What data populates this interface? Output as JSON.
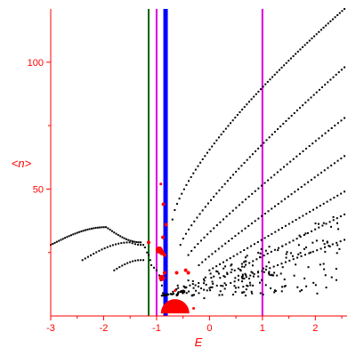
{
  "chart_data": {
    "type": "scatter",
    "title": "",
    "xlabel": "E",
    "ylabel": "<n>",
    "xlim": [
      -3,
      2.6
    ],
    "ylim": [
      0,
      121
    ],
    "x_ticks": [
      -3,
      -2,
      -1,
      0,
      1,
      2
    ],
    "x_tick_labels": [
      "-3",
      "-2",
      "-1",
      "0",
      "1",
      "2"
    ],
    "y_ticks": [
      50,
      100
    ],
    "y_tick_labels": [
      "50",
      "100"
    ],
    "grid": false,
    "legend": "none",
    "colors": {
      "axes": "#ff0000",
      "points": "#000000",
      "highlight": "#ff0000",
      "line_green": "#006400",
      "line_blue": "#0000ff",
      "line_magenta": "#dd00dd"
    },
    "vertical_lines": [
      {
        "x": -1.15,
        "color": "#006400",
        "style": "thin"
      },
      {
        "x": -1.0,
        "color": "#dd00dd",
        "style": "thin"
      },
      {
        "x": -0.83,
        "color": "#0000ff",
        "style": "thick"
      },
      {
        "x": 1.0,
        "color": "#dd00dd",
        "style": "thin"
      }
    ],
    "curves": [
      {
        "type": "arc",
        "x0": -3.0,
        "x1": -1.3,
        "y0": 28,
        "ypeak": 35,
        "xpeak": -1.95,
        "y1": 29,
        "n": 45
      },
      {
        "type": "arc",
        "x0": -2.4,
        "x1": -1.3,
        "y0": 22,
        "ypeak": 29,
        "xpeak": -1.5,
        "y1": 28,
        "n": 22
      },
      {
        "type": "arc",
        "x0": -1.8,
        "x1": -1.25,
        "y0": 18,
        "ypeak": 22,
        "xpeak": -1.3,
        "y1": 22,
        "n": 12
      },
      {
        "type": "power",
        "x0": -0.7,
        "x1": 2.55,
        "y0": 38,
        "y1": 121,
        "p": 0.72,
        "n": 75
      },
      {
        "type": "power",
        "x0": -0.55,
        "x1": 2.55,
        "y0": 28,
        "y1": 98,
        "p": 0.82,
        "n": 60
      },
      {
        "type": "power",
        "x0": -0.4,
        "x1": 2.55,
        "y0": 24,
        "y1": 78,
        "p": 0.9,
        "n": 50
      },
      {
        "type": "power",
        "x0": -0.2,
        "x1": 2.55,
        "y0": 20,
        "y1": 63,
        "p": 0.95,
        "n": 45
      },
      {
        "type": "power",
        "x0": 0.0,
        "x1": 2.55,
        "y0": 18,
        "y1": 49,
        "p": 1.0,
        "n": 40
      },
      {
        "type": "power",
        "x0": 0.2,
        "x1": 2.55,
        "y0": 15,
        "y1": 40,
        "p": 1.0,
        "n": 35
      },
      {
        "type": "power",
        "x0": 0.4,
        "x1": 2.55,
        "y0": 13,
        "y1": 30,
        "p": 1.0,
        "n": 30
      }
    ],
    "cloud": {
      "x0": -0.9,
      "x1": 2.55,
      "y0": 8,
      "y1": 42,
      "n": 220,
      "seed": 7
    },
    "points": [
      {
        "x": -1.25,
        "y": 28
      },
      {
        "x": -1.22,
        "y": 27
      },
      {
        "x": -1.18,
        "y": 25
      },
      {
        "x": -1.15,
        "y": 24
      },
      {
        "x": -1.12,
        "y": 22
      },
      {
        "x": -1.1,
        "y": 20
      },
      {
        "x": -1.05,
        "y": 19
      },
      {
        "x": -1.0,
        "y": 18
      },
      {
        "x": -0.95,
        "y": 16
      },
      {
        "x": -0.92,
        "y": 14
      },
      {
        "x": -0.9,
        "y": 12
      },
      {
        "x": -0.88,
        "y": 9
      },
      {
        "x": -0.85,
        "y": 8
      },
      {
        "x": -0.6,
        "y": 12
      },
      {
        "x": -0.5,
        "y": 10
      },
      {
        "x": -0.4,
        "y": 14
      },
      {
        "x": -0.3,
        "y": 11
      },
      {
        "x": -0.2,
        "y": 9
      },
      {
        "x": -0.1,
        "y": 7
      },
      {
        "x": 0.0,
        "y": 11
      }
    ],
    "highlight_points": [
      {
        "x": -0.95,
        "y": 26,
        "size": 4
      },
      {
        "x": -0.9,
        "y": 25,
        "size": 3
      },
      {
        "x": -0.85,
        "y": 24,
        "size": 2
      },
      {
        "x": -1.15,
        "y": 29,
        "size": 2
      },
      {
        "x": -0.9,
        "y": 15,
        "size": 3.5
      },
      {
        "x": -0.85,
        "y": 17,
        "size": 2
      },
      {
        "x": -0.87,
        "y": 44,
        "size": 2
      },
      {
        "x": -0.92,
        "y": 52,
        "size": 1.5
      },
      {
        "x": -0.82,
        "y": 36,
        "size": 2
      },
      {
        "x": -0.88,
        "y": 31,
        "size": 2
      },
      {
        "x": -0.62,
        "y": 17,
        "size": 2
      },
      {
        "x": -0.45,
        "y": 18,
        "size": 2
      },
      {
        "x": -0.4,
        "y": 17,
        "size": 2
      },
      {
        "x": -0.65,
        "y": 10,
        "size": 1.5
      },
      {
        "x": -0.3,
        "y": 3,
        "size": 1.5
      },
      {
        "x": -0.65,
        "y": 1,
        "size": 16
      }
    ]
  }
}
